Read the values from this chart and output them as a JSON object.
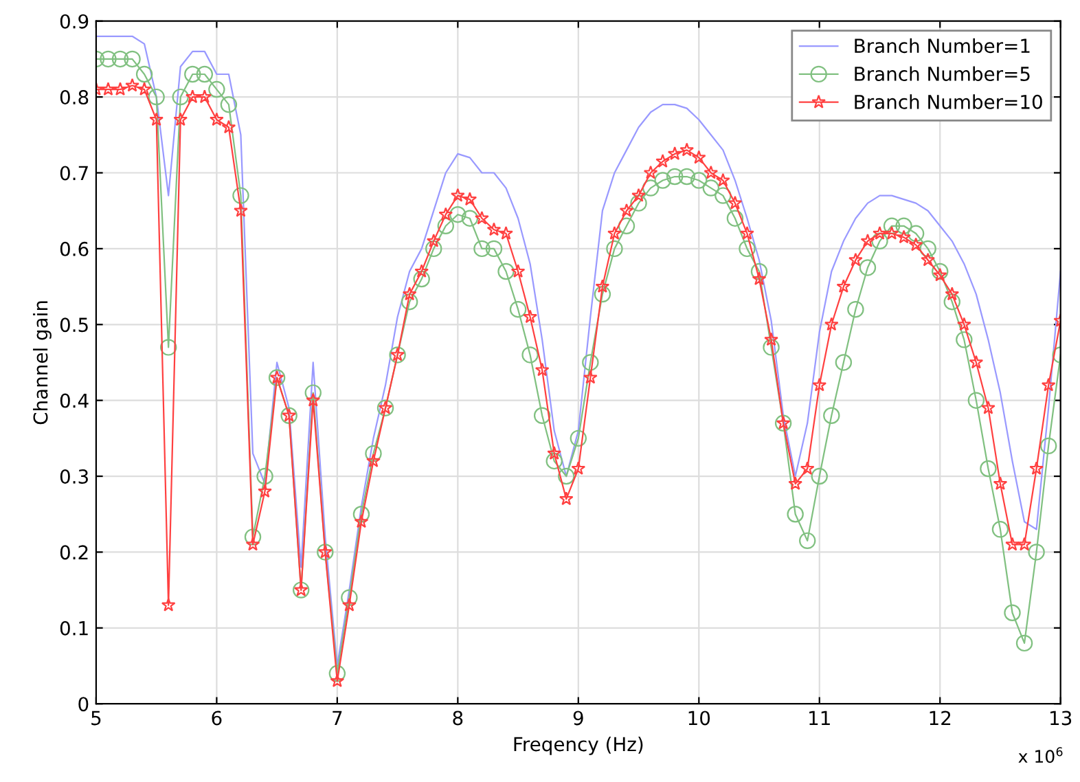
{
  "chart_data": {
    "type": "line",
    "xlabel": "Freqency (Hz)",
    "ylabel": "Channel gain",
    "x": [
      5.0,
      5.1,
      5.2,
      5.3,
      5.4,
      5.5,
      5.6,
      5.7,
      5.8,
      5.9,
      6.0,
      6.1,
      6.2,
      6.3,
      6.4,
      6.5,
      6.6,
      6.7,
      6.8,
      6.9,
      7.0,
      7.1,
      7.2,
      7.3,
      7.4,
      7.5,
      7.6,
      7.7,
      7.8,
      7.9,
      8.0,
      8.1,
      8.2,
      8.3,
      8.4,
      8.5,
      8.6,
      8.7,
      8.8,
      8.9,
      9.0,
      9.1,
      9.2,
      9.3,
      9.4,
      9.5,
      9.6,
      9.7,
      9.8,
      9.9,
      10.0,
      10.1,
      10.2,
      10.3,
      10.4,
      10.5,
      10.6,
      10.7,
      10.8,
      10.9,
      11.0,
      11.1,
      11.2,
      11.3,
      11.4,
      11.5,
      11.6,
      11.7,
      11.8,
      11.9,
      12.0,
      12.1,
      12.2,
      12.3,
      12.4,
      12.5,
      12.6,
      12.7,
      12.8,
      12.9,
      13.0
    ],
    "series": [
      {
        "name": "Branch Number=1",
        "color": "#9999ff",
        "marker": "none",
        "values": [
          0.88,
          0.88,
          0.88,
          0.88,
          0.87,
          0.8,
          0.67,
          0.84,
          0.86,
          0.86,
          0.83,
          0.83,
          0.75,
          0.33,
          0.29,
          0.45,
          0.39,
          0.18,
          0.45,
          0.22,
          0.05,
          0.15,
          0.26,
          0.35,
          0.42,
          0.51,
          0.57,
          0.6,
          0.65,
          0.7,
          0.725,
          0.72,
          0.7,
          0.7,
          0.68,
          0.64,
          0.58,
          0.48,
          0.36,
          0.3,
          0.36,
          0.51,
          0.65,
          0.7,
          0.73,
          0.76,
          0.78,
          0.79,
          0.79,
          0.785,
          0.77,
          0.75,
          0.73,
          0.69,
          0.64,
          0.585,
          0.505,
          0.38,
          0.3,
          0.37,
          0.49,
          0.57,
          0.61,
          0.64,
          0.66,
          0.67,
          0.67,
          0.665,
          0.66,
          0.65,
          0.63,
          0.61,
          0.58,
          0.54,
          0.48,
          0.41,
          0.32,
          0.24,
          0.23,
          0.39,
          0.57
        ]
      },
      {
        "name": "Branch Number=5",
        "color": "#80c080",
        "marker": "circle",
        "values": [
          0.85,
          0.85,
          0.85,
          0.85,
          0.83,
          0.8,
          0.47,
          0.8,
          0.83,
          0.83,
          0.81,
          0.79,
          0.67,
          0.22,
          0.3,
          0.43,
          0.38,
          0.15,
          0.41,
          0.2,
          0.04,
          0.14,
          0.25,
          0.33,
          0.39,
          0.46,
          0.53,
          0.56,
          0.6,
          0.63,
          0.645,
          0.64,
          0.6,
          0.6,
          0.57,
          0.52,
          0.46,
          0.38,
          0.32,
          0.3,
          0.35,
          0.45,
          0.54,
          0.6,
          0.63,
          0.66,
          0.68,
          0.69,
          0.695,
          0.695,
          0.69,
          0.68,
          0.67,
          0.64,
          0.6,
          0.57,
          0.47,
          0.37,
          0.25,
          0.215,
          0.3,
          0.38,
          0.45,
          0.52,
          0.575,
          0.61,
          0.63,
          0.63,
          0.62,
          0.6,
          0.57,
          0.53,
          0.48,
          0.4,
          0.31,
          0.23,
          0.12,
          0.08,
          0.2,
          0.34,
          0.46
        ]
      },
      {
        "name": "Branch Number=10",
        "color": "#ff4040",
        "marker": "star",
        "values": [
          0.81,
          0.81,
          0.81,
          0.815,
          0.81,
          0.77,
          0.13,
          0.77,
          0.8,
          0.8,
          0.77,
          0.76,
          0.65,
          0.21,
          0.28,
          0.43,
          0.38,
          0.15,
          0.4,
          0.2,
          0.03,
          0.13,
          0.24,
          0.32,
          0.39,
          0.46,
          0.54,
          0.57,
          0.61,
          0.645,
          0.67,
          0.665,
          0.64,
          0.625,
          0.62,
          0.57,
          0.51,
          0.44,
          0.33,
          0.27,
          0.31,
          0.43,
          0.55,
          0.62,
          0.65,
          0.67,
          0.7,
          0.715,
          0.725,
          0.73,
          0.72,
          0.7,
          0.69,
          0.66,
          0.62,
          0.56,
          0.48,
          0.37,
          0.29,
          0.31,
          0.42,
          0.5,
          0.55,
          0.585,
          0.61,
          0.62,
          0.62,
          0.615,
          0.605,
          0.585,
          0.565,
          0.54,
          0.5,
          0.45,
          0.39,
          0.29,
          0.21,
          0.21,
          0.31,
          0.42,
          0.505
        ]
      }
    ],
    "xlim": [
      5,
      13
    ],
    "xticks": [
      5,
      6,
      7,
      8,
      9,
      10,
      11,
      12,
      13
    ],
    "ylim": [
      0,
      0.9
    ],
    "yticks": [
      0,
      0.1,
      0.2,
      0.3,
      0.4,
      0.5,
      0.6,
      0.7,
      0.8,
      0.9
    ],
    "grid": true,
    "legend": "top right",
    "line_style": "solid",
    "annotations": [
      "x 10$^{6}$"
    ]
  }
}
